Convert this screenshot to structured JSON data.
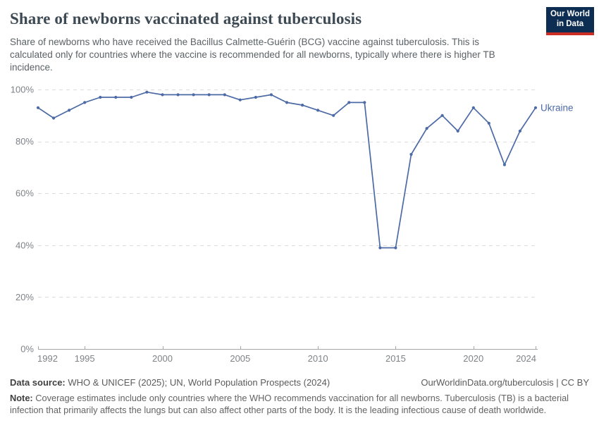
{
  "header": {
    "title": "Share of newborns vaccinated against tuberculosis",
    "subtitle": "Share of newborns who have received the Bacillus Calmette-Guérin (BCG) vaccine against tuberculosis. This is calculated only for countries where the vaccine is recommended for all newborns, typically where there is higher TB incidence."
  },
  "logo": {
    "line1": "Our World",
    "line2": "in Data",
    "bg_color": "#0d2e52",
    "stripe_color": "#cb2d23"
  },
  "footer": {
    "data_source_label": "Data source:",
    "data_source_text": " WHO & UNICEF (2025); UN, World Population Prospects (2024)",
    "link": "OurWorldinData.org/tuberculosis | CC BY",
    "note_label": "Note:",
    "note_text": " Coverage estimates include only countries where the WHO recommends vaccination for all newborns. Tuberculosis (TB) is a bacterial infection that primarily affects the lungs but can also affect other parts of the body. It is the leading infectious cause of death worldwide."
  },
  "chart_data": {
    "type": "line",
    "title": "Share of newborns vaccinated against tuberculosis",
    "xlabel": "",
    "ylabel": "",
    "xlim": [
      1992,
      2024
    ],
    "ylim": [
      0,
      100
    ],
    "grid": "dashed-horizontal",
    "legend_position": "end-of-line-label",
    "yticks": [
      0,
      20,
      40,
      60,
      80,
      100
    ],
    "ytick_suffix": "%",
    "xticks": [
      1992,
      1995,
      2000,
      2005,
      2010,
      2015,
      2020,
      2024
    ],
    "series": [
      {
        "name": "Ukraine",
        "color": "#4c6aa5",
        "x": [
          1992,
          1993,
          1994,
          1995,
          1996,
          1997,
          1998,
          1999,
          2000,
          2001,
          2002,
          2003,
          2004,
          2005,
          2006,
          2007,
          2008,
          2009,
          2010,
          2011,
          2012,
          2013,
          2014,
          2015,
          2016,
          2017,
          2018,
          2019,
          2020,
          2021,
          2022,
          2023,
          2024
        ],
        "values": [
          93,
          89,
          92,
          95,
          97,
          97,
          97,
          99,
          98,
          98,
          98,
          98,
          98,
          96,
          97,
          98,
          95,
          94,
          92,
          90,
          95,
          95,
          39,
          39,
          75,
          85,
          90,
          84,
          93,
          87,
          71,
          84,
          93
        ]
      }
    ]
  }
}
